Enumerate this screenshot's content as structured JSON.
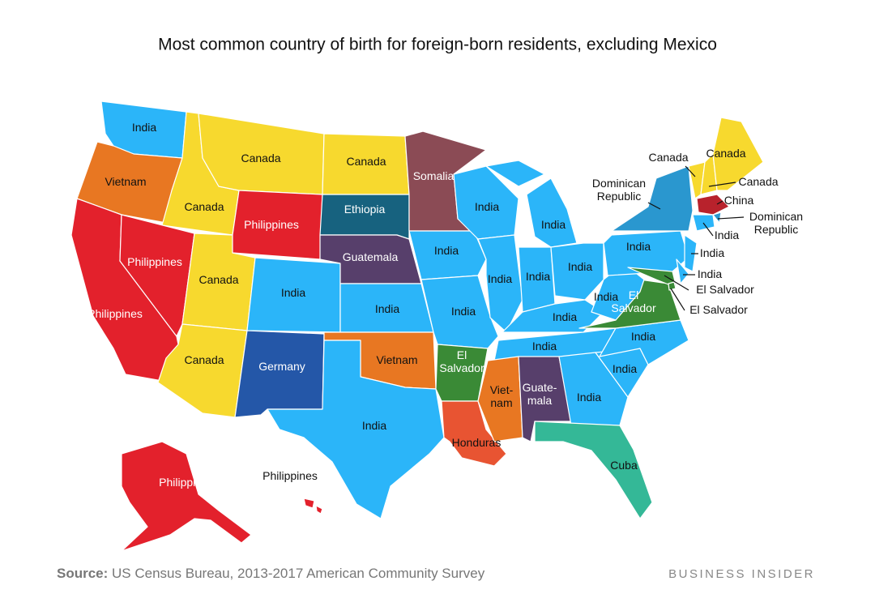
{
  "title": "Most common country of birth for foreign-born residents, excluding Mexico",
  "regions": [
    {
      "label": [
        "India"
      ],
      "color": "#2bb5f9"
    },
    {
      "label": [
        "Vietnam"
      ],
      "color": "#e87722"
    },
    {
      "label": [
        "Philippines"
      ],
      "color": "#e3212c"
    },
    {
      "label": [
        "Canada"
      ],
      "color": "#f7d92e"
    },
    {
      "label": [
        "Canada"
      ],
      "color": "#f7d92e"
    },
    {
      "label": [
        "Philippines"
      ],
      "color": "#e3212c"
    },
    {
      "label": [
        "Canada"
      ],
      "color": "#f7d92e"
    },
    {
      "label": [
        "Philippines"
      ],
      "color": "#e3212c"
    },
    {
      "label": [
        "Canada"
      ],
      "color": "#f7d92e"
    },
    {
      "label": [
        "India"
      ],
      "color": "#2bb5f9"
    },
    {
      "label": [
        "Germany"
      ],
      "color": "#2457a8"
    },
    {
      "label": [
        "Canada"
      ],
      "color": "#f7d92e"
    },
    {
      "label": [
        "Ethiopia"
      ],
      "color": "#17627f"
    },
    {
      "label": [
        "Guatemala"
      ],
      "color": "#573f6b"
    },
    {
      "label": [
        "India"
      ],
      "color": "#2bb5f9"
    },
    {
      "label": [
        "Vietnam"
      ],
      "color": "#e87722"
    },
    {
      "label": [
        "India"
      ],
      "color": "#2bb5f9"
    },
    {
      "label": [
        "Somalia"
      ],
      "color": "#8b4b55"
    },
    {
      "label": [
        "India"
      ],
      "color": "#2bb5f9"
    },
    {
      "label": [
        "India"
      ],
      "color": "#2bb5f9"
    },
    {
      "label": [
        "El",
        "Salvador"
      ],
      "color": "#3a8a36"
    },
    {
      "label": [
        "Honduras"
      ],
      "color": "#e85432"
    },
    {
      "label": [
        "India"
      ],
      "color": "#2bb5f9"
    },
    {
      "label": [
        "India"
      ],
      "color": "#2bb5f9"
    },
    {
      "label": [
        "India"
      ],
      "color": "#2bb5f9"
    },
    {
      "label": [
        "India"
      ],
      "color": "#2bb5f9"
    },
    {
      "label": [
        "India"
      ],
      "color": "#2bb5f9"
    },
    {
      "label": [
        "India"
      ],
      "color": "#2bb5f9"
    },
    {
      "label": [
        "India"
      ],
      "color": "#2bb5f9"
    },
    {
      "label": [
        "Viet-",
        "nam"
      ],
      "color": "#e87722"
    },
    {
      "label": [
        "Guate-",
        "mala"
      ],
      "color": "#573f6b"
    },
    {
      "label": [
        "India"
      ],
      "color": "#2bb5f9"
    },
    {
      "label": [
        "Cuba"
      ],
      "color": "#34b897"
    },
    {
      "label": [
        "India"
      ],
      "color": "#2bb5f9"
    },
    {
      "label": [
        "India"
      ],
      "color": "#2bb5f9"
    },
    {
      "label": [
        "El",
        "Salvador"
      ],
      "color": "#3a8a36"
    },
    {
      "label": [
        "India"
      ],
      "color": "#2bb5f9"
    },
    {
      "label": [
        "India"
      ],
      "color": "#2bb5f9"
    },
    {
      "label": [
        "Dominican",
        "Republic"
      ],
      "color": "#2a97cf"
    },
    {
      "label": [
        "El Salvador"
      ],
      "color": "#3a8a36"
    },
    {
      "label": [
        "El Salvador"
      ],
      "color": "#3a8a36"
    },
    {
      "label": [
        "India"
      ],
      "color": "#2bb5f9"
    },
    {
      "label": [
        "India"
      ],
      "color": "#2bb5f9"
    },
    {
      "label": [
        "Canada"
      ],
      "color": "#f7d92e"
    },
    {
      "label": [
        "Canada"
      ],
      "color": "#f7d92e"
    },
    {
      "label": [
        "Canada"
      ],
      "color": "#f7d92e"
    },
    {
      "label": [
        "China"
      ],
      "color": "#b8222c"
    },
    {
      "label": [
        "Dominican",
        "Republic"
      ],
      "color": "#2a97cf"
    },
    {
      "label": [
        "India"
      ],
      "color": "#2bb5f9"
    },
    {
      "label": [
        "Philippines"
      ],
      "color": "#e3212c"
    },
    {
      "label": [
        "Philippines"
      ],
      "color": "#e3212c"
    }
  ],
  "source": {
    "prefix": "Source:",
    "text": "US Census Bureau, 2013-2017 American Community Survey"
  },
  "brand": "BUSINESS INSIDER"
}
